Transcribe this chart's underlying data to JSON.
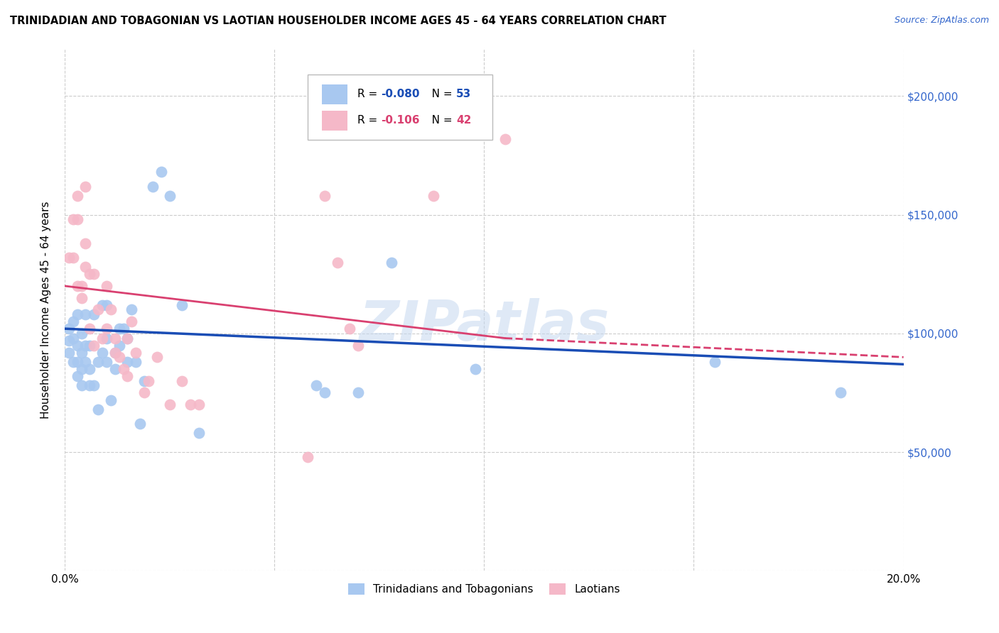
{
  "title": "TRINIDADIAN AND TOBAGONIAN VS LAOTIAN HOUSEHOLDER INCOME AGES 45 - 64 YEARS CORRELATION CHART",
  "source": "Source: ZipAtlas.com",
  "ylabel": "Householder Income Ages 45 - 64 years",
  "xlim": [
    0.0,
    0.2
  ],
  "ylim": [
    0,
    220000
  ],
  "yticks": [
    0,
    50000,
    100000,
    150000,
    200000
  ],
  "ytick_labels": [
    "",
    "$50,000",
    "$100,000",
    "$150,000",
    "$200,000"
  ],
  "xticks": [
    0.0,
    0.05,
    0.1,
    0.15,
    0.2
  ],
  "xtick_labels": [
    "0.0%",
    "",
    "",
    "",
    "20.0%"
  ],
  "blue_R": "-0.080",
  "blue_N": "53",
  "pink_R": "-0.106",
  "pink_N": "42",
  "blue_color": "#a8c8f0",
  "pink_color": "#f5b8c8",
  "blue_line_color": "#1a4db5",
  "pink_line_color": "#d94070",
  "watermark": "ZIPatlas",
  "legend_label_blue": "Trinidadians and Tobagonians",
  "legend_label_pink": "Laotians",
  "blue_scatter_x": [
    0.001,
    0.001,
    0.001,
    0.002,
    0.002,
    0.002,
    0.003,
    0.003,
    0.003,
    0.003,
    0.004,
    0.004,
    0.004,
    0.004,
    0.005,
    0.005,
    0.005,
    0.006,
    0.006,
    0.006,
    0.007,
    0.007,
    0.008,
    0.008,
    0.009,
    0.009,
    0.01,
    0.01,
    0.01,
    0.011,
    0.012,
    0.012,
    0.013,
    0.013,
    0.014,
    0.015,
    0.015,
    0.016,
    0.017,
    0.018,
    0.019,
    0.021,
    0.023,
    0.025,
    0.028,
    0.032,
    0.06,
    0.062,
    0.07,
    0.078,
    0.098,
    0.155,
    0.185
  ],
  "blue_scatter_y": [
    97000,
    102000,
    92000,
    98000,
    105000,
    88000,
    95000,
    108000,
    88000,
    82000,
    92000,
    85000,
    78000,
    100000,
    95000,
    108000,
    88000,
    95000,
    85000,
    78000,
    108000,
    78000,
    68000,
    88000,
    112000,
    92000,
    112000,
    98000,
    88000,
    72000,
    92000,
    85000,
    102000,
    95000,
    102000,
    98000,
    88000,
    110000,
    88000,
    62000,
    80000,
    162000,
    168000,
    158000,
    112000,
    58000,
    78000,
    75000,
    75000,
    130000,
    85000,
    88000,
    75000
  ],
  "pink_scatter_x": [
    0.001,
    0.002,
    0.002,
    0.003,
    0.003,
    0.003,
    0.004,
    0.004,
    0.005,
    0.005,
    0.005,
    0.006,
    0.006,
    0.007,
    0.007,
    0.008,
    0.009,
    0.01,
    0.01,
    0.011,
    0.012,
    0.012,
    0.013,
    0.014,
    0.015,
    0.015,
    0.016,
    0.017,
    0.019,
    0.02,
    0.022,
    0.025,
    0.028,
    0.03,
    0.032,
    0.058,
    0.062,
    0.065,
    0.068,
    0.07,
    0.088,
    0.105
  ],
  "pink_scatter_y": [
    132000,
    132000,
    148000,
    148000,
    120000,
    158000,
    120000,
    115000,
    138000,
    128000,
    162000,
    102000,
    125000,
    125000,
    95000,
    110000,
    98000,
    120000,
    102000,
    110000,
    98000,
    92000,
    90000,
    85000,
    98000,
    82000,
    105000,
    92000,
    75000,
    80000,
    90000,
    70000,
    80000,
    70000,
    70000,
    48000,
    158000,
    130000,
    102000,
    95000,
    158000,
    182000
  ]
}
